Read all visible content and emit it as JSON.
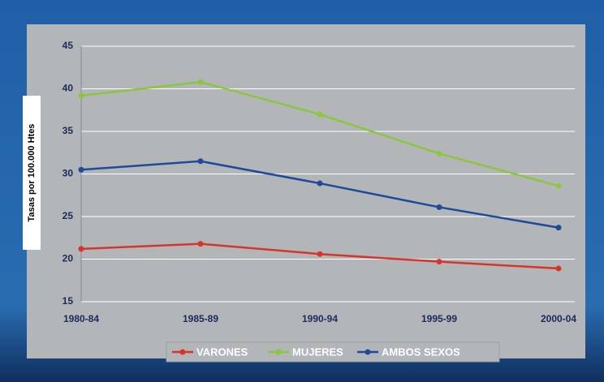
{
  "chart_data": {
    "type": "line",
    "y_label": "Tasas por 100.000 Htes",
    "categories": [
      "1980-84",
      "1985-89",
      "1990-94",
      "1995-99",
      "2000-04"
    ],
    "series": [
      {
        "name": "VARONES",
        "color": "#d9342b",
        "values": [
          21.2,
          21.8,
          20.6,
          19.7,
          18.9
        ]
      },
      {
        "name": "MUJERES",
        "color": "#8cc63e",
        "values": [
          39.2,
          40.8,
          37.0,
          32.4,
          28.6
        ]
      },
      {
        "name": "AMBOS SEXOS",
        "color": "#1f4a9a",
        "values": [
          30.5,
          31.5,
          28.9,
          26.1,
          23.7
        ]
      }
    ],
    "ylim": [
      15,
      45
    ],
    "yticks": [
      15,
      20,
      25,
      30,
      35,
      40,
      45
    ],
    "grid": true,
    "legend": "bottom"
  }
}
